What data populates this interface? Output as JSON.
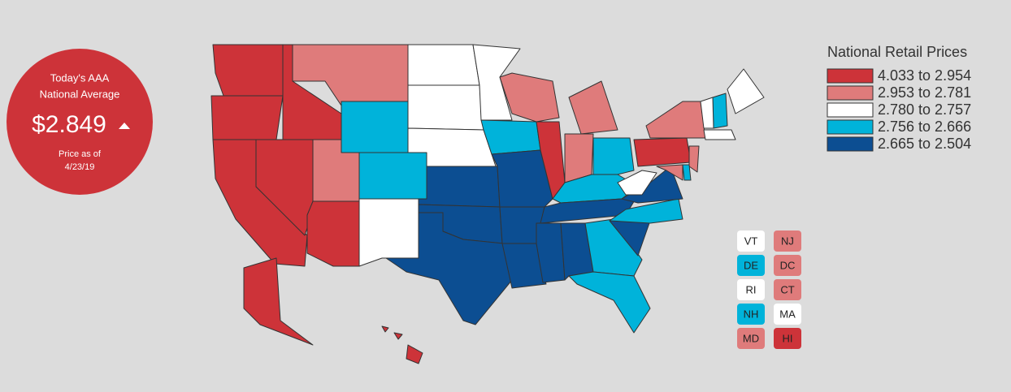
{
  "badge": {
    "line1": "Today's AAA",
    "line2": "National Average",
    "price": "$2.849",
    "note1": "Price as of",
    "note2": "4/23/19"
  },
  "legend": {
    "title": "National Retail Prices",
    "items": [
      {
        "label": "4.033 to 2.954",
        "color": "#cd3339"
      },
      {
        "label": "2.953 to 2.781",
        "color": "#df7b7b"
      },
      {
        "label": "2.780 to 2.757",
        "color": "#ffffff"
      },
      {
        "label": "2.756 to 2.666",
        "color": "#00b3da"
      },
      {
        "label": "2.665 to 2.504",
        "color": "#0c4e92"
      }
    ]
  },
  "small_states": [
    {
      "label": "VT",
      "color": "#ffffff"
    },
    {
      "label": "NJ",
      "color": "#df7b7b"
    },
    {
      "label": "DE",
      "color": "#00b3da"
    },
    {
      "label": "DC",
      "color": "#df7b7b"
    },
    {
      "label": "RI",
      "color": "#ffffff"
    },
    {
      "label": "CT",
      "color": "#df7b7b"
    },
    {
      "label": "NH",
      "color": "#00b3da"
    },
    {
      "label": "MA",
      "color": "#ffffff"
    },
    {
      "label": "MD",
      "color": "#df7b7b"
    },
    {
      "label": "HI",
      "color": "#cd3339"
    }
  ]
}
